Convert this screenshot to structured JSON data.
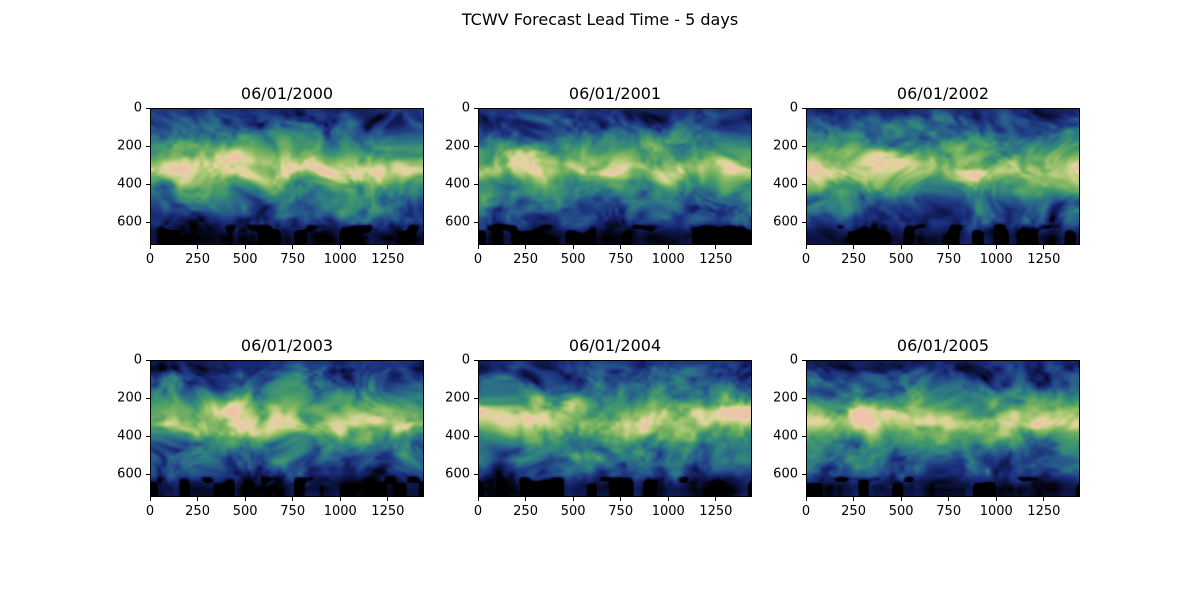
{
  "chart_data": {
    "type": "heatmap",
    "suptitle": "TCWV Forecast Lead Time - 5 days",
    "grid": {
      "rows": 2,
      "cols": 3
    },
    "x_range": [
      0,
      1440
    ],
    "y_range": [
      0,
      721
    ],
    "y_direction": "down",
    "x_tick_values": [
      0,
      250,
      500,
      750,
      1000,
      1250
    ],
    "x_tick_labels": [
      "0",
      "250",
      "500",
      "750",
      "1000",
      "1250"
    ],
    "y_tick_values": [
      0,
      200,
      400,
      600
    ],
    "y_tick_labels": [
      "0",
      "200",
      "400",
      "600"
    ],
    "legend": "none",
    "background_color": "#ffffff",
    "text_color": "#000000",
    "colormap_stops": [
      [
        0.0,
        "#000000"
      ],
      [
        0.07,
        "#0c1340"
      ],
      [
        0.17,
        "#1b2d7c"
      ],
      [
        0.3,
        "#275a8c"
      ],
      [
        0.42,
        "#2f8180"
      ],
      [
        0.53,
        "#44996c"
      ],
      [
        0.64,
        "#71af60"
      ],
      [
        0.76,
        "#a6c671"
      ],
      [
        0.86,
        "#d4d494"
      ],
      [
        0.93,
        "#e6d2a4"
      ],
      [
        1.0,
        "#eec3ab"
      ]
    ],
    "subplots": [
      {
        "title": "06/01/2000"
      },
      {
        "title": "06/01/2001"
      },
      {
        "title": "06/01/2002"
      },
      {
        "title": "06/01/2003"
      },
      {
        "title": "06/01/2004"
      },
      {
        "title": "06/01/2005"
      }
    ]
  }
}
